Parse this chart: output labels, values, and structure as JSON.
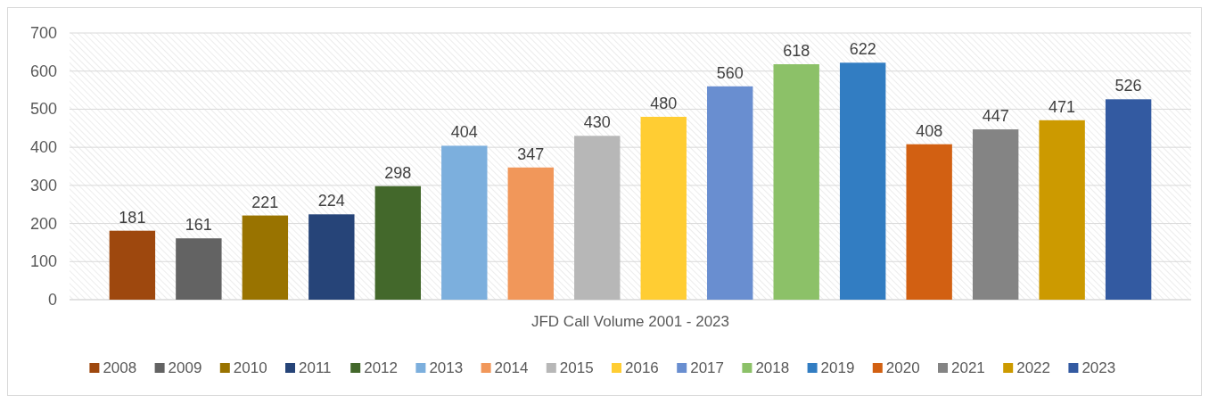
{
  "chart_data": {
    "type": "bar",
    "categories": [
      "JFD Call Volume 2001 - 2023"
    ],
    "series": [
      {
        "name": "2008",
        "color": "#9e480e",
        "values": [
          181
        ]
      },
      {
        "name": "2009",
        "color": "#636363",
        "values": [
          161
        ]
      },
      {
        "name": "2010",
        "color": "#997300",
        "values": [
          221
        ]
      },
      {
        "name": "2011",
        "color": "#264478",
        "values": [
          224
        ]
      },
      {
        "name": "2012",
        "color": "#43682b",
        "values": [
          298
        ]
      },
      {
        "name": "2013",
        "color": "#7cafdd",
        "values": [
          404
        ]
      },
      {
        "name": "2014",
        "color": "#f1975a",
        "values": [
          347
        ]
      },
      {
        "name": "2015",
        "color": "#b7b7b7",
        "values": [
          430
        ]
      },
      {
        "name": "2016",
        "color": "#ffcd33",
        "values": [
          480
        ]
      },
      {
        "name": "2017",
        "color": "#698ed0",
        "values": [
          560
        ]
      },
      {
        "name": "2018",
        "color": "#8cc168",
        "values": [
          618
        ]
      },
      {
        "name": "2019",
        "color": "#327dc2",
        "values": [
          622
        ]
      },
      {
        "name": "2020",
        "color": "#d26012",
        "values": [
          408
        ]
      },
      {
        "name": "2021",
        "color": "#848484",
        "values": [
          447
        ]
      },
      {
        "name": "2022",
        "color": "#cc9a00",
        "values": [
          471
        ]
      },
      {
        "name": "2023",
        "color": "#335aa1",
        "values": [
          526
        ]
      }
    ],
    "ylim": [
      0,
      700
    ],
    "yticks": [
      0,
      100,
      200,
      300,
      400,
      500,
      600,
      700
    ],
    "grid": "y",
    "legend": "bottom",
    "data_labels": true
  }
}
